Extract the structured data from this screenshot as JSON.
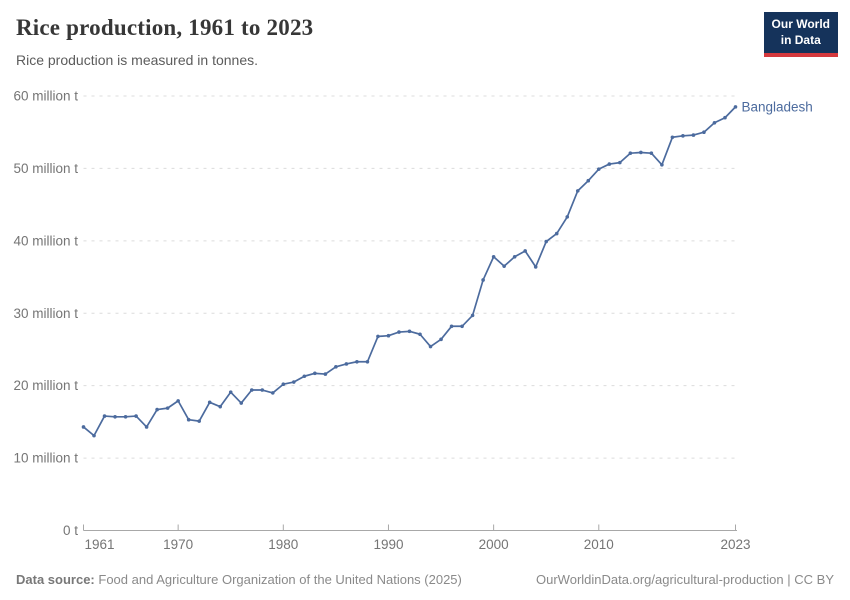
{
  "header": {
    "title": "Rice production, 1961 to 2023",
    "subtitle": "Rice production is measured in tonnes.",
    "logo": {
      "line1": "Our World",
      "line2": "in Data",
      "bg_color": "#15335b",
      "accent_color": "#d5393e"
    }
  },
  "footer": {
    "datasource_label": "Data source:",
    "datasource_text": "Food and Agriculture Organization of the United Nations (2025)",
    "url": "OurWorldinData.org/agricultural-production",
    "divider": "|",
    "license": "CC BY"
  },
  "chart_data": {
    "type": "line",
    "title": "Rice production, 1961 to 2023",
    "subtitle": "Rice production is measured in tonnes.",
    "unit": "tonnes",
    "xlim": [
      1961,
      2023
    ],
    "ylim": [
      0,
      60000000
    ],
    "ylim_million_t": [
      0,
      60
    ],
    "grid": "horizontal dashed gridlines, solid x axis at 0",
    "legend": "series label at right end of line",
    "x_ticks": [
      1961,
      1970,
      1980,
      1990,
      2000,
      2010,
      2023
    ],
    "x_tick_labels": [
      "1961",
      "1970",
      "1980",
      "1990",
      "2000",
      "2010",
      "2023"
    ],
    "y_ticks": [
      0,
      10,
      20,
      30,
      40,
      50,
      60
    ],
    "y_tick_labels": [
      "0 t",
      "10 million t",
      "20 million t",
      "30 million t",
      "40 million t",
      "50 million t",
      "60 million t"
    ],
    "series": [
      {
        "name": "Bangladesh",
        "color": "#4c6b9e",
        "values_unit": "million tonnes (estimated from chart)",
        "x": [
          1961,
          1962,
          1963,
          1964,
          1965,
          1966,
          1967,
          1968,
          1969,
          1970,
          1971,
          1972,
          1973,
          1974,
          1975,
          1976,
          1977,
          1978,
          1979,
          1980,
          1981,
          1982,
          1983,
          1984,
          1985,
          1986,
          1987,
          1988,
          1989,
          1990,
          1991,
          1992,
          1993,
          1994,
          1995,
          1996,
          1997,
          1998,
          1999,
          2000,
          2001,
          2002,
          2003,
          2004,
          2005,
          2006,
          2007,
          2008,
          2009,
          2010,
          2011,
          2012,
          2013,
          2014,
          2015,
          2016,
          2017,
          2018,
          2019,
          2020,
          2021,
          2022,
          2023
        ],
        "values": [
          14.3,
          13.1,
          15.8,
          15.7,
          15.7,
          15.8,
          14.3,
          16.7,
          16.9,
          17.9,
          15.3,
          15.1,
          17.7,
          17.1,
          19.1,
          17.6,
          19.4,
          19.4,
          19.0,
          20.2,
          20.5,
          21.3,
          21.7,
          21.6,
          22.6,
          23.0,
          23.3,
          23.3,
          26.8,
          26.9,
          27.4,
          27.5,
          27.1,
          25.4,
          26.4,
          28.2,
          28.2,
          29.7,
          34.6,
          37.8,
          36.5,
          37.8,
          38.6,
          36.4,
          39.9,
          41.0,
          43.3,
          46.9,
          48.3,
          49.9,
          50.6,
          50.8,
          52.1,
          52.2,
          52.1,
          50.5,
          54.3,
          54.5,
          54.6,
          55.0,
          56.3,
          57.0,
          58.5
        ]
      }
    ]
  }
}
